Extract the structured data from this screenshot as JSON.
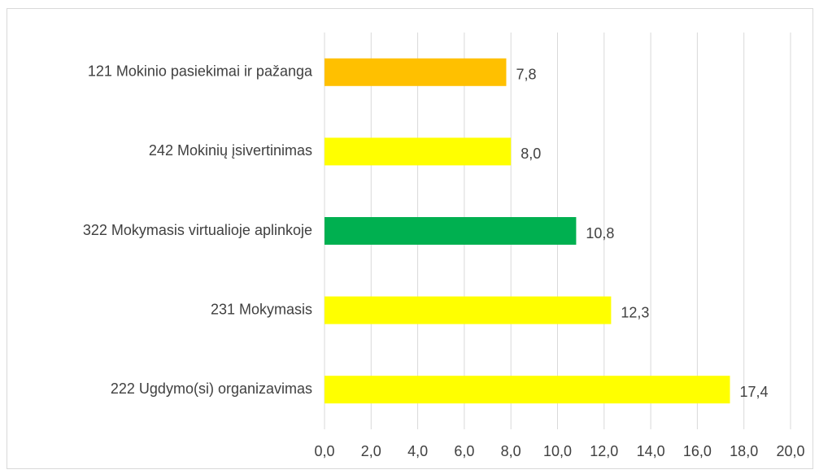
{
  "chart_data": {
    "type": "bar",
    "orientation": "horizontal",
    "categories": [
      "121 Mokinio pasiekimai ir pažanga",
      "242 Mokinių įsivertinimas",
      "322 Mokymasis virtualioje aplinkoje",
      "231 Mokymasis",
      "222 Ugdymo(si) organizavimas"
    ],
    "values": [
      7.8,
      8.0,
      10.8,
      12.3,
      17.4
    ],
    "value_labels": [
      "7,8",
      "8,0",
      "10,8",
      "12,3",
      "17,4"
    ],
    "colors": [
      "#ffc000",
      "#ffff00",
      "#00b050",
      "#ffff00",
      "#ffff00"
    ],
    "xlim": [
      0,
      20
    ],
    "xticks": [
      {
        "value": 0,
        "label": "0,0"
      },
      {
        "value": 2,
        "label": "2,0"
      },
      {
        "value": 4,
        "label": "4,0"
      },
      {
        "value": 6,
        "label": "6,0"
      },
      {
        "value": 8,
        "label": "8,0"
      },
      {
        "value": 10,
        "label": "10,0"
      },
      {
        "value": 12,
        "label": "12,0"
      },
      {
        "value": 14,
        "label": "14,0"
      },
      {
        "value": 16,
        "label": "16,0"
      },
      {
        "value": 18,
        "label": "18,0"
      },
      {
        "value": 20,
        "label": "20,0"
      }
    ],
    "grid": true
  }
}
